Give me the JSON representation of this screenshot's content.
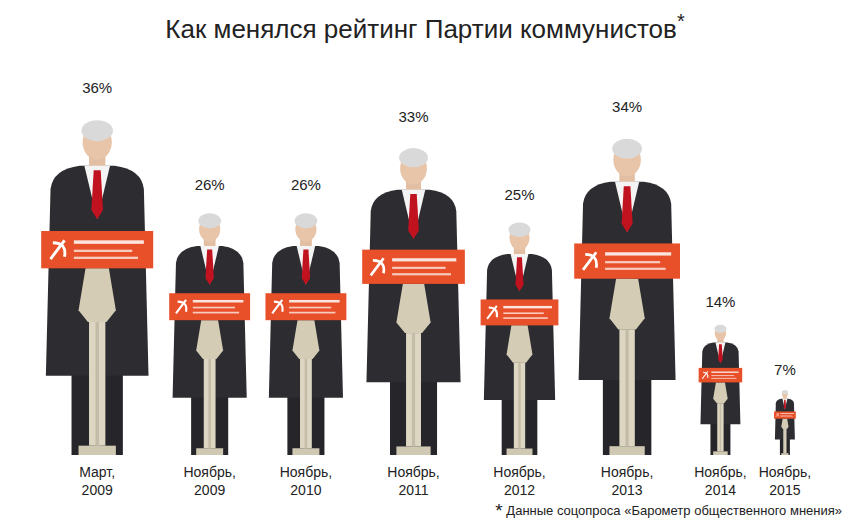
{
  "chart_data": {
    "type": "pictogram",
    "title": "Как менялся рейтинг Партии коммунистов*",
    "categories": [
      "Март, 2009",
      "Ноябрь, 2009",
      "Ноябрь, 2010",
      "Ноябрь, 2011",
      "Ноябрь, 2012",
      "Ноябрь, 2013",
      "Ноябрь, 2014",
      "Ноябрь, 2015"
    ],
    "values": [
      36,
      26,
      26,
      33,
      25,
      34,
      14,
      7
    ],
    "value_labels": [
      "36%",
      "26%",
      "26%",
      "33%",
      "25%",
      "34%",
      "14%",
      "7%"
    ],
    "data_labels": true,
    "tick_labels": false,
    "color": "#e8502a",
    "source": "* Данные соцопроса «Барометр общественного мнения»"
  }
}
